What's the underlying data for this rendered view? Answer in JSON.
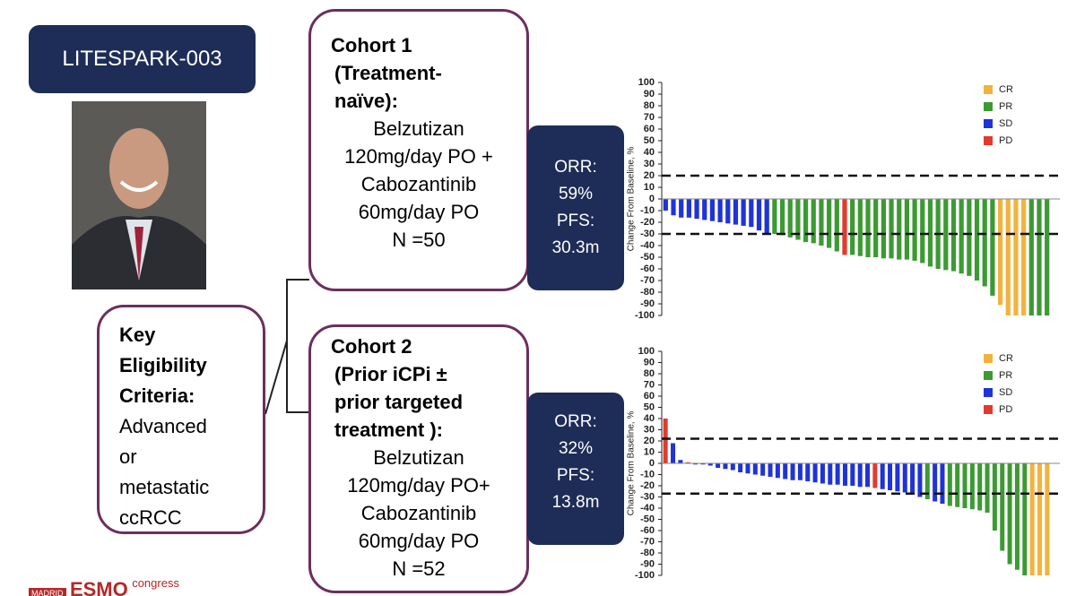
{
  "header": {
    "title": "LITESPARK-003"
  },
  "eligibility": {
    "heading_lines": [
      "Key",
      "Eligibility",
      "Criteria:"
    ],
    "body_lines": [
      "Advanced",
      "or",
      "metastatic",
      "ccRCC"
    ]
  },
  "cohorts": [
    {
      "heading_lines": [
        "Cohort 1",
        "(Treatment-",
        "naïve):"
      ],
      "body_lines": [
        "Belzutizan",
        "120mg/day PO +",
        "Cabozantinib",
        "60mg/day PO",
        "N =50"
      ],
      "result_lines": [
        "ORR:",
        "59%",
        "PFS:",
        "30.3m"
      ]
    },
    {
      "heading_lines": [
        "Cohort 2",
        "(Prior iCPi ±",
        "prior targeted",
        "treatment ):"
      ],
      "body_lines": [
        "Belzutizan",
        "120mg/day PO+",
        "Cabozantinib",
        "60mg/day PO",
        "N =52"
      ],
      "result_lines": [
        "ORR:",
        "32%",
        "PFS:",
        "13.8m"
      ]
    }
  ],
  "footer": {
    "city": "MADRID",
    "brand": "ESMO",
    "event": "congress"
  },
  "chart_data": [
    {
      "type": "waterfall",
      "y_label": "Change From Baseline, %",
      "ylim": [
        -100,
        100
      ],
      "yticks": [
        -100,
        -90,
        -80,
        -70,
        -60,
        -50,
        -40,
        -30,
        -20,
        -10,
        0,
        10,
        20,
        30,
        40,
        50,
        60,
        70,
        80,
        90,
        100
      ],
      "reference_lines": [
        20,
        -30
      ],
      "legend": [
        {
          "name": "CR",
          "color": "#f2b33d"
        },
        {
          "name": "PR",
          "color": "#3c9a33"
        },
        {
          "name": "SD",
          "color": "#1f33d9"
        },
        {
          "name": "PD",
          "color": "#e23b2e"
        }
      ],
      "values": [
        -10,
        -14,
        -16,
        -16,
        -17,
        -18,
        -19,
        -20,
        -21,
        -22,
        -23,
        -24,
        -27,
        -30,
        -30,
        -31,
        -33,
        -35,
        -37,
        -38,
        -40,
        -42,
        -45,
        -48,
        -48,
        -49,
        -50,
        -50,
        -51,
        -51,
        -52,
        -52,
        -53,
        -55,
        -58,
        -60,
        -61,
        -62,
        -64,
        -66,
        -70,
        -75,
        -83,
        -91,
        -100,
        -100,
        -100,
        -100,
        -100,
        -100
      ],
      "colors": [
        "#1f33d9",
        "#1f33d9",
        "#1f33d9",
        "#1f33d9",
        "#1f33d9",
        "#1f33d9",
        "#1f33d9",
        "#1f33d9",
        "#1f33d9",
        "#1f33d9",
        "#1f33d9",
        "#1f33d9",
        "#1f33d9",
        "#1f33d9",
        "#3c9a33",
        "#3c9a33",
        "#3c9a33",
        "#3c9a33",
        "#3c9a33",
        "#3c9a33",
        "#3c9a33",
        "#3c9a33",
        "#3c9a33",
        "#e23b2e",
        "#3c9a33",
        "#3c9a33",
        "#3c9a33",
        "#3c9a33",
        "#3c9a33",
        "#3c9a33",
        "#3c9a33",
        "#3c9a33",
        "#3c9a33",
        "#3c9a33",
        "#3c9a33",
        "#3c9a33",
        "#3c9a33",
        "#3c9a33",
        "#3c9a33",
        "#3c9a33",
        "#3c9a33",
        "#3c9a33",
        "#3c9a33",
        "#f2b33d",
        "#f2b33d",
        "#f2b33d",
        "#f2b33d",
        "#3c9a33",
        "#3c9a33",
        "#3c9a33"
      ]
    },
    {
      "type": "waterfall",
      "y_label": "Change From Baseline, %",
      "ylim": [
        -100,
        100
      ],
      "yticks": [
        -100,
        -90,
        -80,
        -70,
        -60,
        -50,
        -40,
        -30,
        -20,
        -10,
        0,
        10,
        20,
        30,
        40,
        50,
        60,
        70,
        80,
        90,
        100
      ],
      "reference_lines": [
        22,
        -27
      ],
      "legend": [
        {
          "name": "CR",
          "color": "#f2b33d"
        },
        {
          "name": "PR",
          "color": "#3c9a33"
        },
        {
          "name": "SD",
          "color": "#1f33d9"
        },
        {
          "name": "PD",
          "color": "#e23b2e"
        }
      ],
      "values": [
        40,
        18,
        3,
        1,
        -1,
        -1,
        -2,
        -4,
        -5,
        -6,
        -8,
        -9,
        -10,
        -11,
        -12,
        -13,
        -14,
        -15,
        -15,
        -16,
        -17,
        -18,
        -19,
        -19,
        -20,
        -20,
        -21,
        -21,
        -22,
        -23,
        -24,
        -25,
        -26,
        -28,
        -30,
        -32,
        -34,
        -36,
        -38,
        -39,
        -40,
        -41,
        -42,
        -44,
        -60,
        -78,
        -90,
        -95,
        -100,
        -100,
        -100,
        -100
      ],
      "colors": [
        "#e23b2e",
        "#1f33d9",
        "#1f33d9",
        "#e23b2e",
        "#1f33d9",
        "#1f33d9",
        "#1f33d9",
        "#1f33d9",
        "#1f33d9",
        "#1f33d9",
        "#1f33d9",
        "#1f33d9",
        "#1f33d9",
        "#1f33d9",
        "#1f33d9",
        "#1f33d9",
        "#1f33d9",
        "#1f33d9",
        "#1f33d9",
        "#1f33d9",
        "#1f33d9",
        "#1f33d9",
        "#1f33d9",
        "#1f33d9",
        "#1f33d9",
        "#1f33d9",
        "#1f33d9",
        "#1f33d9",
        "#e23b2e",
        "#1f33d9",
        "#1f33d9",
        "#1f33d9",
        "#1f33d9",
        "#1f33d9",
        "#1f33d9",
        "#3c9a33",
        "#1f33d9",
        "#1f33d9",
        "#3c9a33",
        "#3c9a33",
        "#3c9a33",
        "#3c9a33",
        "#3c9a33",
        "#3c9a33",
        "#3c9a33",
        "#3c9a33",
        "#3c9a33",
        "#3c9a33",
        "#3c9a33",
        "#f2b33d",
        "#f2b33d",
        "#f2b33d"
      ]
    }
  ]
}
